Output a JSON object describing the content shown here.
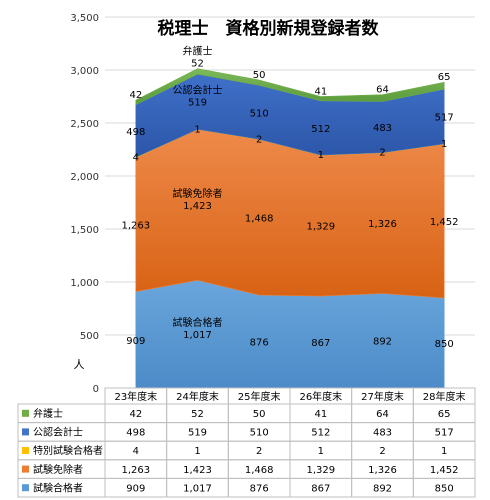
{
  "chart_data": {
    "type": "area",
    "stacked": true,
    "title": "税理士　資格別新規登録者数",
    "ylabel": "人",
    "xlabel": "",
    "ylim": [
      0,
      3500
    ],
    "yticks": [
      "0",
      "500",
      "1,000",
      "1,500",
      "2,000",
      "2,500",
      "3,000",
      "3,500"
    ],
    "ytick_values": [
      0,
      500,
      1000,
      1500,
      2000,
      2500,
      3000,
      3500
    ],
    "grid": true,
    "legend": "data-table-below",
    "categories": [
      "23年度末",
      "24年度末",
      "25年度末",
      "26年度末",
      "27年度末",
      "28年度末"
    ],
    "series": [
      {
        "name": "試験合格者",
        "color": "#5b9bd5",
        "values": [
          909,
          1017,
          876,
          867,
          892,
          850
        ],
        "labels": [
          "909",
          "1,017",
          "876",
          "867",
          "892",
          "850"
        ]
      },
      {
        "name": "試験免除者",
        "color": "#ed7d31",
        "values": [
          1263,
          1423,
          1468,
          1329,
          1326,
          1452
        ],
        "labels": [
          "1,263",
          "1,423",
          "1,468",
          "1,329",
          "1,326",
          "1,452"
        ]
      },
      {
        "name": "特別試験合格者",
        "color": "#ffc000",
        "values": [
          4,
          1,
          2,
          1,
          2,
          1
        ],
        "labels": [
          "4",
          "1",
          "2",
          "1",
          "2",
          "1"
        ]
      },
      {
        "name": "公認会計士",
        "color": "#4472c4",
        "values": [
          498,
          519,
          510,
          512,
          483,
          517
        ],
        "labels": [
          "498",
          "519",
          "510",
          "512",
          "483",
          "517"
        ]
      },
      {
        "name": "弁護士",
        "color": "#70ad47",
        "values": [
          42,
          52,
          50,
          41,
          64,
          65
        ],
        "labels": [
          "42",
          "52",
          "50",
          "41",
          "64",
          "65"
        ]
      }
    ],
    "table_row_order": [
      "弁護士",
      "公認会計士",
      "特別試験合格者",
      "試験免除者",
      "試験合格者"
    ]
  }
}
